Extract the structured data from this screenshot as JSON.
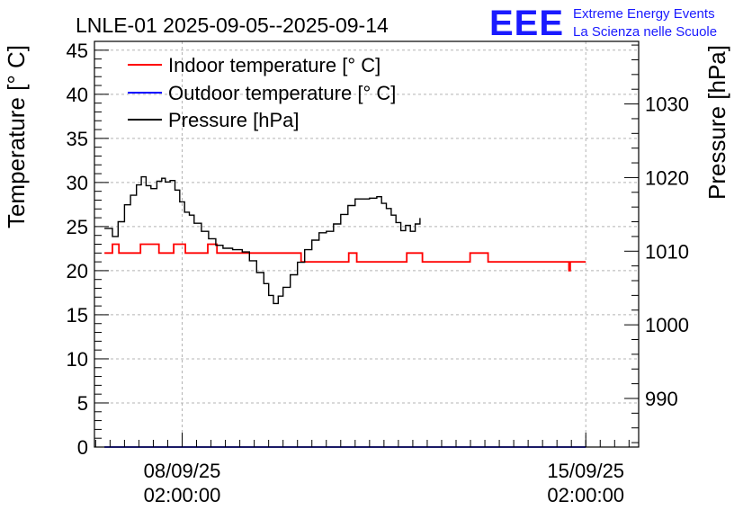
{
  "header": {
    "title": "LNLE-01 2025-09-05--2025-09-14",
    "logo_text": "EEE",
    "org_line1": "Extreme Energy Events",
    "org_line2": "La Scienza nelle Scuole"
  },
  "colors": {
    "logo": "#1a1aff",
    "indoor": "#ff0000",
    "outdoor": "#0000ff",
    "pressure": "#000000",
    "grid": "#b4b4b4"
  },
  "chart_data": {
    "type": "line",
    "title": "LNLE-01 2025-09-05--2025-09-14",
    "ylabel": "Temperature [° C]",
    "y2label": "Pressure [hPa]",
    "xlabel": "",
    "ylim": [
      0,
      46
    ],
    "y2lim": [
      983.4,
      1038.5
    ],
    "xlim": [
      "2025-09-06T13:30:00",
      "2025-09-16T00:00:00"
    ],
    "grid": true,
    "legend_position": "top-left",
    "yticks": [
      0,
      5,
      10,
      15,
      20,
      25,
      30,
      35,
      40,
      45
    ],
    "y2ticks": [
      990,
      1000,
      1010,
      1020,
      1030
    ],
    "x_ticks": [
      {
        "x": "2025-09-08T02:00:00",
        "date_label": "08/09/25",
        "time_label": "02:00:00"
      },
      {
        "x": "2025-09-15T02:00:00",
        "date_label": "15/09/25",
        "time_label": "02:00:00"
      }
    ],
    "series": [
      {
        "name": "Indoor temperature [° C]",
        "axis": "left",
        "color": "#ff0000",
        "points": [
          [
            "2025-09-06T17:40:00",
            22
          ],
          [
            "2025-09-06T21:00:00",
            23
          ],
          [
            "2025-09-06T23:20:00",
            23
          ],
          [
            "2025-09-06T23:40:00",
            22
          ],
          [
            "2025-09-07T08:00:00",
            22
          ],
          [
            "2025-09-07T08:40:00",
            23
          ],
          [
            "2025-09-07T15:40:00",
            23
          ],
          [
            "2025-09-07T16:20:00",
            22
          ],
          [
            "2025-09-07T21:50:00",
            22
          ],
          [
            "2025-09-07T22:30:00",
            23
          ],
          [
            "2025-09-08T02:40:00",
            23
          ],
          [
            "2025-09-08T03:20:00",
            22
          ],
          [
            "2025-09-08T12:00:00",
            22
          ],
          [
            "2025-09-08T12:40:00",
            23
          ],
          [
            "2025-09-08T15:50:00",
            23
          ],
          [
            "2025-09-08T16:30:00",
            22
          ],
          [
            "2025-09-10T02:50:00",
            22
          ],
          [
            "2025-09-10T03:30:00",
            21
          ],
          [
            "2025-09-10T22:40:00",
            21
          ],
          [
            "2025-09-10T23:20:00",
            22
          ],
          [
            "2025-09-11T02:00:00",
            22
          ],
          [
            "2025-09-11T02:40:00",
            21
          ],
          [
            "2025-09-11T22:50:00",
            21
          ],
          [
            "2025-09-11T23:30:00",
            22
          ],
          [
            "2025-09-12T05:20:00",
            22
          ],
          [
            "2025-09-12T06:00:00",
            21
          ],
          [
            "2025-09-13T01:10:00",
            21
          ],
          [
            "2025-09-13T01:50:00",
            22
          ],
          [
            "2025-09-13T08:40:00",
            22
          ],
          [
            "2025-09-13T09:20:00",
            21
          ],
          [
            "2025-09-14T18:30:00",
            21
          ],
          [
            "2025-09-14T19:00:00",
            20
          ],
          [
            "2025-09-14T19:30:00",
            21
          ],
          [
            "2025-09-15T02:00:00",
            21
          ]
        ]
      },
      {
        "name": "Outdoor temperature [° C]",
        "axis": "left",
        "color": "#0000ff",
        "points": [
          [
            "2025-09-06T17:40:00",
            0
          ],
          [
            "2025-09-15T02:00:00",
            0
          ]
        ]
      },
      {
        "name": "Pressure [hPa]",
        "axis": "right",
        "color": "#000000",
        "points": [
          [
            "2025-09-06T17:40:00",
            1013.1
          ],
          [
            "2025-09-06T21:00:00",
            1012
          ],
          [
            "2025-09-06T23:20:00",
            1014
          ],
          [
            "2025-09-07T02:00:00",
            1016.3
          ],
          [
            "2025-09-07T04:30:00",
            1017.6
          ],
          [
            "2025-09-07T07:00:00",
            1019
          ],
          [
            "2025-09-07T09:00:00",
            1020.1
          ],
          [
            "2025-09-07T11:00:00",
            1018.9
          ],
          [
            "2025-09-07T13:00:00",
            1018.5
          ],
          [
            "2025-09-07T15:30:00",
            1019.5
          ],
          [
            "2025-09-07T17:30:00",
            1019.9
          ],
          [
            "2025-09-07T19:00:00",
            1019.4
          ],
          [
            "2025-09-07T21:00:00",
            1019.6
          ],
          [
            "2025-09-07T23:00:00",
            1018.3
          ],
          [
            "2025-09-08T01:00:00",
            1016.7
          ],
          [
            "2025-09-08T03:00:00",
            1015.3
          ],
          [
            "2025-09-08T05:00:00",
            1014.9
          ],
          [
            "2025-09-08T07:00:00",
            1013.8
          ],
          [
            "2025-09-08T10:00:00",
            1012.7
          ],
          [
            "2025-09-08T13:00:00",
            1011.7
          ],
          [
            "2025-09-08T16:00:00",
            1010.8
          ],
          [
            "2025-09-08T19:00:00",
            1010.4
          ],
          [
            "2025-09-08T23:00:00",
            1010.2
          ],
          [
            "2025-09-09T03:00:00",
            1009.9
          ],
          [
            "2025-09-09T06:00:00",
            1008.7
          ],
          [
            "2025-09-09T09:00:00",
            1007.1
          ],
          [
            "2025-09-09T12:00:00",
            1005.6
          ],
          [
            "2025-09-09T14:00:00",
            1004
          ],
          [
            "2025-09-09T16:00:00",
            1002.9
          ],
          [
            "2025-09-09T18:00:00",
            1003.9
          ],
          [
            "2025-09-09T20:00:00",
            1005.1
          ],
          [
            "2025-09-09T23:00:00",
            1006.8
          ],
          [
            "2025-09-10T02:00:00",
            1008.5
          ],
          [
            "2025-09-10T05:00:00",
            1010.2
          ],
          [
            "2025-09-10T08:00:00",
            1011.5
          ],
          [
            "2025-09-10T11:00:00",
            1012.5
          ],
          [
            "2025-09-10T14:00:00",
            1012.7
          ],
          [
            "2025-09-10T17:00:00",
            1013.7
          ],
          [
            "2025-09-10T20:00:00",
            1015
          ],
          [
            "2025-09-10T23:00:00",
            1016.2
          ],
          [
            "2025-09-11T02:00:00",
            1017.1
          ],
          [
            "2025-09-11T05:00:00",
            1017.1
          ],
          [
            "2025-09-11T08:00:00",
            1017.2
          ],
          [
            "2025-09-11T11:00:00",
            1017.4
          ],
          [
            "2025-09-11T13:00:00",
            1016.5
          ],
          [
            "2025-09-11T15:00:00",
            1015.8
          ],
          [
            "2025-09-11T17:00:00",
            1014.9
          ],
          [
            "2025-09-11T19:00:00",
            1013.9
          ],
          [
            "2025-09-11T21:00:00",
            1012.8
          ],
          [
            "2025-09-11T23:00:00",
            1013.5
          ],
          [
            "2025-09-12T01:00:00",
            1012.7
          ],
          [
            "2025-09-12T03:00:00",
            1013.7
          ],
          [
            "2025-09-12T05:00:00",
            1014.5
          ]
        ]
      }
    ]
  }
}
